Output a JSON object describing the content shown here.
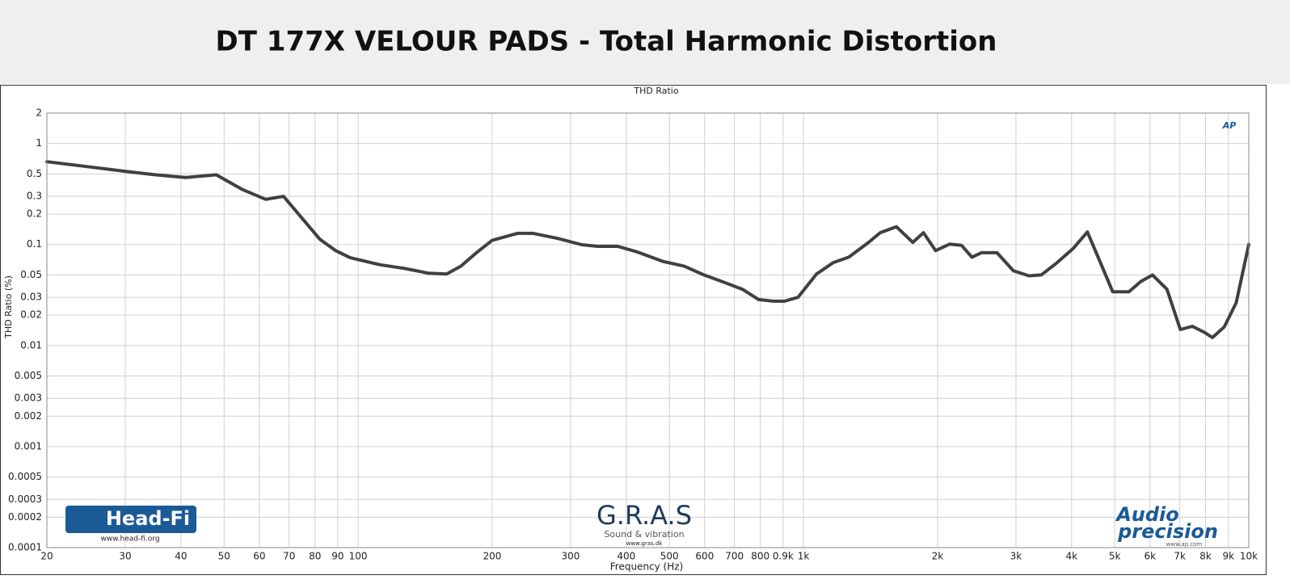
{
  "chart_data": {
    "type": "line",
    "title": "DT 177X VELOUR PADS - Total Harmonic Distortion",
    "subtitle": "THD Ratio",
    "x_label": "Frequency (Hz)",
    "y_label": "THD Ratio (%)",
    "xscale": "log",
    "yscale": "log",
    "grid": true,
    "x": [
      20,
      30,
      35,
      41,
      48,
      55,
      62,
      68,
      82,
      89,
      96,
      112,
      127,
      144,
      158,
      170,
      185,
      200,
      228,
      247,
      280,
      318,
      345,
      383,
      425,
      484,
      540,
      598,
      676,
      730,
      793,
      856,
      906,
      972,
      1070,
      1165,
      1264,
      1400,
      1487,
      1617,
      1760,
      1860,
      1980,
      2130,
      2265,
      2390,
      2510,
      2720,
      2960,
      3210,
      3420,
      3710,
      4030,
      4340,
      4600,
      4950,
      5380,
      5720,
      6080,
      6550,
      7020,
      7470,
      7950,
      8290,
      8810,
      9370,
      10000
    ],
    "series": [
      {
        "name": "THD Ratio",
        "color": "#404040",
        "values": [
          0.66,
          0.53,
          0.49,
          0.46,
          0.49,
          0.35,
          0.28,
          0.3,
          0.113,
          0.087,
          0.074,
          0.063,
          0.058,
          0.052,
          0.051,
          0.061,
          0.084,
          0.11,
          0.129,
          0.129,
          0.115,
          0.0995,
          0.096,
          0.096,
          0.084,
          0.068,
          0.061,
          0.05,
          0.041,
          0.036,
          0.0285,
          0.0275,
          0.0275,
          0.03,
          0.051,
          0.066,
          0.075,
          0.105,
          0.131,
          0.15,
          0.105,
          0.131,
          0.087,
          0.101,
          0.098,
          0.075,
          0.083,
          0.083,
          0.055,
          0.049,
          0.05,
          0.066,
          0.091,
          0.133,
          0.073,
          0.034,
          0.034,
          0.043,
          0.05,
          0.036,
          0.0144,
          0.0155,
          0.0135,
          0.012,
          0.0153,
          0.0265,
          0.1
        ]
      }
    ],
    "xlim": [
      20,
      10000
    ],
    "ylim": [
      0.0001,
      2
    ],
    "xticks": [
      20,
      30,
      40,
      50,
      60,
      70,
      80,
      90,
      100,
      200,
      300,
      400,
      500,
      600,
      700,
      800,
      {
        "value": 900,
        "label": "0.9k"
      },
      {
        "value": 1000,
        "label": "1k"
      },
      {
        "value": 2000,
        "label": "2k"
      },
      {
        "value": 3000,
        "label": "3k"
      },
      {
        "value": 4000,
        "label": "4k"
      },
      {
        "value": 5000,
        "label": "5k"
      },
      {
        "value": 6000,
        "label": "6k"
      },
      {
        "value": 7000,
        "label": "7k"
      },
      {
        "value": 8000,
        "label": "8k"
      },
      {
        "value": 9000,
        "label": "9k"
      },
      {
        "value": 10000,
        "label": "10k"
      }
    ],
    "yticks": [
      2,
      1,
      0.5,
      0.3,
      0.2,
      0.1,
      0.05,
      0.03,
      0.02,
      0.01,
      0.005,
      0.003,
      0.002,
      0.001,
      0.0005,
      0.0003,
      0.0002,
      0.0001
    ],
    "logos": {
      "headfi": "Head-Fi",
      "headfi_url": "www.head-fi.org",
      "gras": "G.R.A.S",
      "gras_sub": "Sound & vibration",
      "gras_url": "www.gras.dk",
      "ap_line1": "Audio",
      "ap_line2": "precision",
      "ap_url": "www.ap.com",
      "ap_badge": "AP"
    }
  }
}
